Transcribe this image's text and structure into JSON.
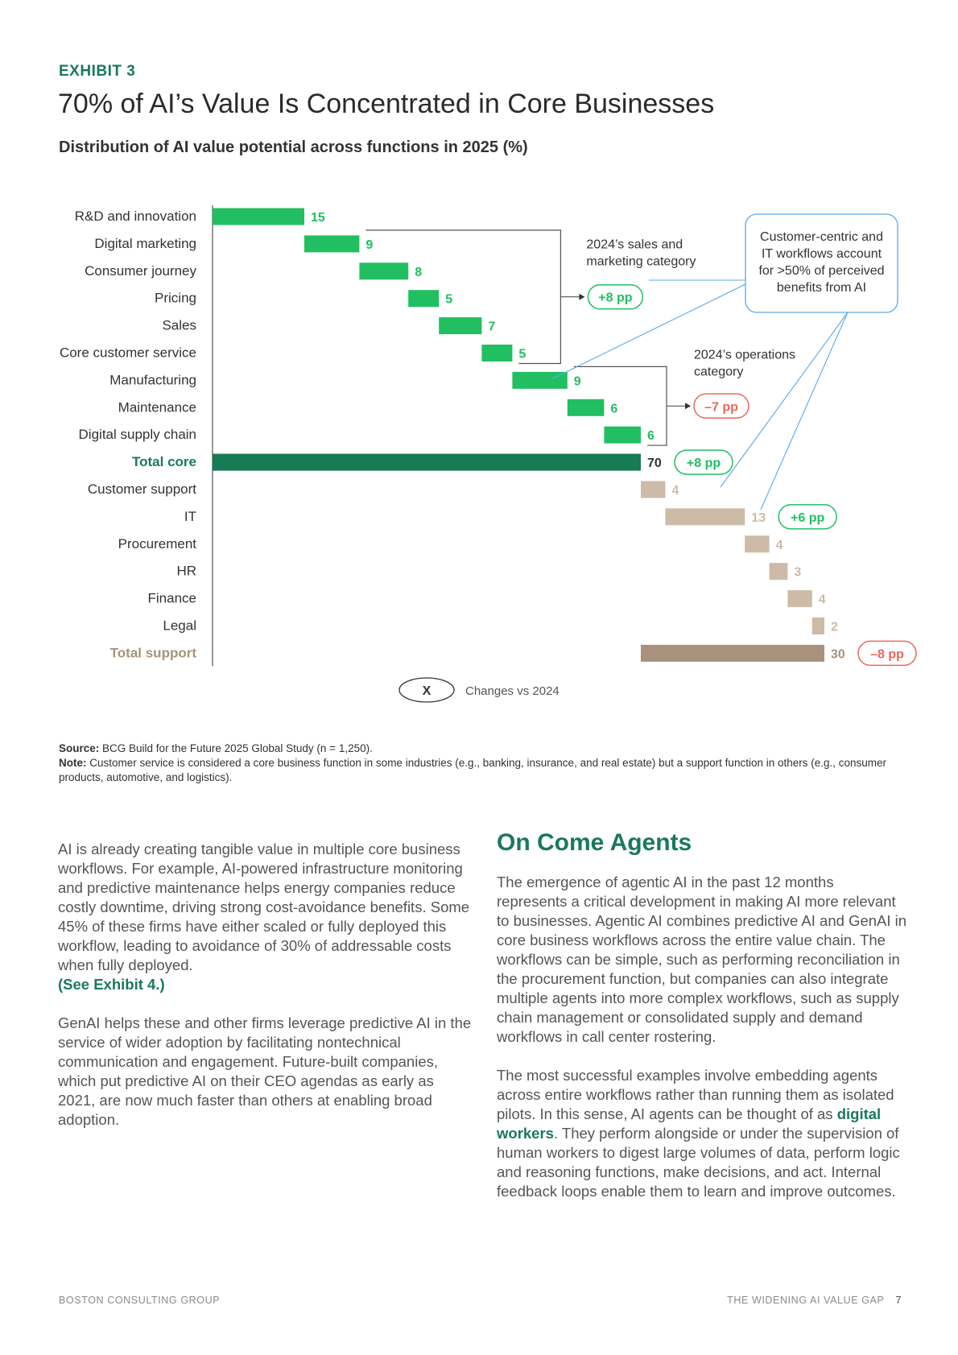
{
  "header": {
    "exhibit": "EXHIBIT 3",
    "title": "70% of AI’s Value Is Concentrated in Core Businesses",
    "subtitle": "Distribution of AI value potential across functions in 2025",
    "subtitle_unit": "(%)"
  },
  "colors": {
    "core": "#21bf61",
    "core_total": "#197a56",
    "support": "#cdbba8",
    "support_total": "#a8927c",
    "positive": "#21bf61",
    "negative": "#e7685b",
    "callout_border": "#5aa9e6"
  },
  "chart_data": {
    "type": "waterfall",
    "unit": "%",
    "xlim": [
      0,
      100
    ],
    "categories": [
      "R&D and innovation",
      "Digital marketing",
      "Consumer journey",
      "Pricing",
      "Sales",
      "Core customer service",
      "Manufacturing",
      "Maintenance",
      "Digital supply chain",
      "Total core",
      "Customer support",
      "IT",
      "Procurement",
      "HR",
      "Finance",
      "Legal",
      "Total support"
    ],
    "values": [
      15,
      9,
      8,
      5,
      7,
      5,
      9,
      6,
      6,
      70,
      4,
      13,
      4,
      3,
      4,
      2,
      30
    ],
    "groups": [
      "core",
      "core",
      "core",
      "core",
      "core",
      "core",
      "core",
      "core",
      "core",
      "core_total",
      "support",
      "support",
      "support",
      "support",
      "support",
      "support",
      "support_total"
    ],
    "changes_vs_2024": [
      {
        "target": "Total core",
        "label": "+8 pp",
        "sign": "positive"
      },
      {
        "target": "IT",
        "label": "+6 pp",
        "sign": "positive"
      },
      {
        "target": "Total support",
        "label": "–8 pp",
        "sign": "negative"
      }
    ],
    "brackets": [
      {
        "from": "Digital marketing",
        "to": "Core customer service",
        "label": "2024’s sales and marketing category",
        "change": "+8 pp",
        "sign": "positive"
      },
      {
        "from": "Manufacturing",
        "to": "Digital supply chain",
        "label": "2024’s operations category",
        "change": "–7 pp",
        "sign": "negative"
      }
    ],
    "callout": "Customer-centric and IT workflows account for >50% of perceived benefits from AI",
    "legend": {
      "symbol": "X",
      "label": "Changes vs 2024"
    }
  },
  "notes": {
    "source_label": "Source:",
    "source_text": "BCG Build for the Future 2025 Global Study (n = 1,250).",
    "note_label": "Note:",
    "note_text": "Customer service is considered a core business function in some industries (e.g., banking, insurance, and real estate) but a support function in others (e.g., consumer products, automotive, and logistics)."
  },
  "body": {
    "left_p1": "AI is already creating tangible value in multiple core business workflows. For example, AI-powered infrastructure monitoring and predictive maintenance helps energy companies reduce costly downtime, driving strong cost-avoidance benefits. Some 45% of these firms have either scaled or fully deployed this workflow, leading to avoidance of 30% of addressable costs when fully deployed.",
    "left_p1_ref": "(See Exhibit 4.)",
    "left_p2": "GenAI helps these and other firms leverage predictive AI in the service of wider adoption by facilitating nontechnical communication and engagement. Future-built companies, which put predictive AI on their CEO agendas as early as 2021, are now much faster than others at enabling broad adoption.",
    "right_heading": "On Come Agents",
    "right_p1": "The emergence of agentic AI in the past 12 months represents a critical development in making AI more relevant to businesses. Agentic AI combines predictive AI and GenAI in core business workflows across the entire value chain. The workflows can be simple, such as performing reconciliation in the procurement function, but companies can also integrate multiple agents into more complex workflows, such as supply chain management or consolidated supply and demand workflows in call center rostering.",
    "right_p2_a": "The most successful examples involve embedding agents across entire workflows rather than running them as isolated pilots. In this sense, AI agents can be thought of as",
    "right_p2_hl": "digital workers",
    "right_p2_b": ". They perform alongside or under the supervision of human workers to digest large volumes of data, perform logic and reasoning functions, make decisions, and act. Internal feedback loops enable them to learn and improve outcomes."
  },
  "footer": {
    "left": "BOSTON CONSULTING GROUP",
    "right": "THE WIDENING AI VALUE GAP",
    "page": "7"
  }
}
